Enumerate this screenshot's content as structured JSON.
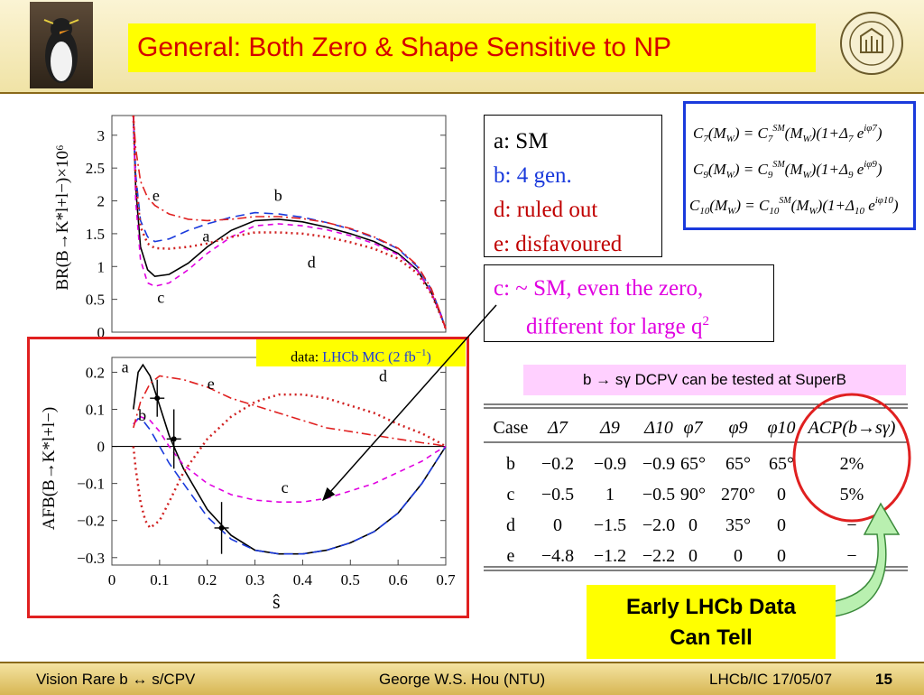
{
  "header": {
    "title": "General: Both Zero & Shape Sensitive to NP"
  },
  "legend": [
    {
      "text": "a: SM",
      "color": "#000000"
    },
    {
      "text": "b: 4 gen.",
      "color": "#1a3adc"
    },
    {
      "text": "d: ruled out",
      "color": "#c00000"
    },
    {
      "text": "e: disfavoured",
      "color": "#c00000"
    }
  ],
  "note_c": {
    "line1": "c: ~ SM, even the zero,",
    "line2": "different for large q",
    "sup": "2"
  },
  "formulas": [
    {
      "lhs": "C7(MW)",
      "rhs": "C7SM(MW)(1+Δ7 e^{iφ7})"
    },
    {
      "lhs": "C9(MW)",
      "rhs": "C9SM(MW)(1+Δ9 e^{iφ9})"
    },
    {
      "lhs": "C10(MW)",
      "rhs": "C10SM(MW)(1+Δ10 e^{iφ10})"
    }
  ],
  "data_label": {
    "prefix": "data:",
    "text": "LHCb MC (2 fb",
    "sup": "−1",
    "suffix": ")"
  },
  "superb_note": {
    "text": "b → sγ DCPV can be tested at SuperB"
  },
  "callout": {
    "line1": "Early LHCb Data",
    "line2": "Can Tell"
  },
  "table": {
    "headers": [
      "Case",
      "Δ7",
      "Δ9",
      "Δ10",
      "φ7",
      "φ9",
      "φ10",
      "ACP(b→sγ)"
    ],
    "rows": [
      [
        "b",
        "−0.2",
        "−0.9",
        "−0.9",
        "65°",
        "65°",
        "65°",
        "2%"
      ],
      [
        "c",
        "−0.5",
        "1",
        "−0.5",
        "90°",
        "270°",
        "0",
        "5%"
      ],
      [
        "d",
        "0",
        "−1.5",
        "−2.0",
        "0",
        "35°",
        "0",
        "−"
      ],
      [
        "e",
        "−4.8",
        "−1.2",
        "−2.2",
        "0",
        "0",
        "0",
        "−"
      ]
    ]
  },
  "footer": {
    "left": "Vision Rare b ↔ s/CPV",
    "center": "George W.S. Hou (NTU)",
    "right": "LHCb/IC 17/05/07",
    "page": "15"
  },
  "chart_data": [
    {
      "type": "line",
      "ylabel": "BR(B→K*l+l−)×10⁶",
      "ylim": [
        0,
        3.3
      ],
      "xlim": [
        0,
        0.7
      ],
      "yticks": [
        0,
        0.5,
        1,
        1.5,
        2,
        2.5,
        3
      ],
      "ytick_labels": [
        "0",
        "0.5",
        "1",
        "1.5",
        "2",
        "2.5",
        "3"
      ],
      "curve_labels": [
        "e",
        "b",
        "a",
        "d",
        "c"
      ],
      "series": [
        {
          "name": "a",
          "color": "#000000",
          "dash": "",
          "x": [
            0.045,
            0.05,
            0.06,
            0.075,
            0.09,
            0.12,
            0.16,
            0.2,
            0.25,
            0.3,
            0.35,
            0.4,
            0.45,
            0.5,
            0.55,
            0.6,
            0.64,
            0.67,
            0.69,
            0.7
          ],
          "y": [
            3.3,
            2.2,
            1.3,
            0.95,
            0.85,
            0.88,
            1.05,
            1.3,
            1.55,
            1.7,
            1.72,
            1.68,
            1.6,
            1.5,
            1.38,
            1.2,
            0.95,
            0.6,
            0.25,
            0.05
          ]
        },
        {
          "name": "b",
          "color": "#1a3adc",
          "dash": "10,6",
          "x": [
            0.045,
            0.05,
            0.06,
            0.075,
            0.09,
            0.12,
            0.16,
            0.2,
            0.25,
            0.3,
            0.35,
            0.4,
            0.45,
            0.5,
            0.55,
            0.6,
            0.64,
            0.67,
            0.69,
            0.7
          ],
          "y": [
            3.3,
            2.4,
            1.7,
            1.45,
            1.38,
            1.42,
            1.55,
            1.65,
            1.75,
            1.82,
            1.8,
            1.75,
            1.67,
            1.57,
            1.44,
            1.27,
            1.0,
            0.65,
            0.27,
            0.05
          ]
        },
        {
          "name": "c",
          "color": "#e000e0",
          "dash": "6,5",
          "x": [
            0.045,
            0.05,
            0.06,
            0.075,
            0.09,
            0.12,
            0.16,
            0.2,
            0.25,
            0.3,
            0.35,
            0.4,
            0.45,
            0.5,
            0.55,
            0.6,
            0.64,
            0.67,
            0.69,
            0.7
          ],
          "y": [
            3.3,
            2.0,
            1.1,
            0.75,
            0.7,
            0.75,
            0.95,
            1.2,
            1.45,
            1.62,
            1.65,
            1.62,
            1.56,
            1.47,
            1.35,
            1.18,
            0.94,
            0.6,
            0.25,
            0.05
          ]
        },
        {
          "name": "d",
          "color": "#d02020",
          "dash": "2,4",
          "x": [
            0.045,
            0.05,
            0.06,
            0.075,
            0.09,
            0.12,
            0.16,
            0.2,
            0.25,
            0.3,
            0.35,
            0.4,
            0.45,
            0.5,
            0.55,
            0.6,
            0.64,
            0.67,
            0.69,
            0.7
          ],
          "y": [
            3.3,
            2.3,
            1.6,
            1.35,
            1.28,
            1.27,
            1.3,
            1.35,
            1.45,
            1.52,
            1.52,
            1.5,
            1.45,
            1.37,
            1.27,
            1.12,
            0.9,
            0.58,
            0.24,
            0.05
          ]
        },
        {
          "name": "e",
          "color": "#e02020",
          "dash": "10,4,2,4",
          "x": [
            0.045,
            0.05,
            0.06,
            0.075,
            0.09,
            0.12,
            0.16,
            0.2,
            0.25,
            0.3,
            0.35,
            0.4,
            0.45,
            0.5,
            0.55,
            0.6,
            0.64,
            0.67,
            0.69,
            0.7
          ],
          "y": [
            3.3,
            2.8,
            2.3,
            2.05,
            1.93,
            1.8,
            1.72,
            1.7,
            1.72,
            1.76,
            1.76,
            1.73,
            1.67,
            1.58,
            1.45,
            1.28,
            1.02,
            0.66,
            0.27,
            0.05
          ]
        }
      ]
    },
    {
      "type": "line",
      "ylabel": "AFB(B→K*l+l−)",
      "xlabel": "ŝ",
      "xlim": [
        0,
        0.7
      ],
      "ylim": [
        -0.32,
        0.24
      ],
      "xticks": [
        0,
        0.1,
        0.2,
        0.3,
        0.4,
        0.5,
        0.6,
        0.7
      ],
      "xtick_labels": [
        "0",
        "0.1",
        "0.2",
        "0.3",
        "0.4",
        "0.5",
        "0.6",
        "0.7"
      ],
      "yticks": [
        -0.3,
        -0.2,
        -0.1,
        0,
        0.1,
        0.2
      ],
      "ytick_labels": [
        "−0.3",
        "−0.2",
        "−0.1",
        "0",
        "0.1",
        "0.2"
      ],
      "curve_labels": [
        "a",
        "b",
        "e",
        "d",
        "c"
      ],
      "series": [
        {
          "name": "a",
          "color": "#000000",
          "dash": "",
          "x": [
            0.045,
            0.055,
            0.065,
            0.08,
            0.1,
            0.12,
            0.15,
            0.2,
            0.25,
            0.3,
            0.35,
            0.4,
            0.45,
            0.5,
            0.55,
            0.6,
            0.65,
            0.68,
            0.7
          ],
          "y": [
            0.1,
            0.2,
            0.22,
            0.19,
            0.11,
            0.03,
            -0.06,
            -0.17,
            -0.24,
            -0.28,
            -0.29,
            -0.29,
            -0.28,
            -0.26,
            -0.23,
            -0.18,
            -0.1,
            -0.04,
            0
          ]
        },
        {
          "name": "b",
          "color": "#1a3adc",
          "dash": "10,6",
          "x": [
            0.045,
            0.055,
            0.065,
            0.08,
            0.1,
            0.12,
            0.15,
            0.2,
            0.25,
            0.3,
            0.35,
            0.4,
            0.45,
            0.5,
            0.55,
            0.6,
            0.65,
            0.68,
            0.7
          ],
          "y": [
            0.06,
            0.075,
            0.07,
            0.045,
            0.0,
            -0.045,
            -0.1,
            -0.19,
            -0.25,
            -0.28,
            -0.29,
            -0.29,
            -0.28,
            -0.26,
            -0.23,
            -0.18,
            -0.1,
            -0.04,
            0
          ]
        },
        {
          "name": "c",
          "color": "#e000e0",
          "dash": "6,5",
          "x": [
            0.045,
            0.06,
            0.08,
            0.1,
            0.12,
            0.15,
            0.2,
            0.25,
            0.3,
            0.35,
            0.4,
            0.45,
            0.5,
            0.55,
            0.6,
            0.65,
            0.68,
            0.7
          ],
          "y": [
            0.06,
            0.08,
            0.07,
            0.04,
            0.0,
            -0.05,
            -0.1,
            -0.13,
            -0.145,
            -0.15,
            -0.15,
            -0.14,
            -0.12,
            -0.1,
            -0.07,
            -0.04,
            -0.015,
            0
          ]
        },
        {
          "name": "d",
          "color": "#d02020",
          "dash": "2,4",
          "x": [
            0.045,
            0.05,
            0.06,
            0.07,
            0.08,
            0.1,
            0.12,
            0.15,
            0.2,
            0.25,
            0.3,
            0.35,
            0.4,
            0.45,
            0.5,
            0.55,
            0.6,
            0.65,
            0.68,
            0.7
          ],
          "y": [
            0.0,
            -0.06,
            -0.15,
            -0.2,
            -0.22,
            -0.2,
            -0.15,
            -0.07,
            0.02,
            0.08,
            0.12,
            0.14,
            0.14,
            0.13,
            0.11,
            0.09,
            0.06,
            0.035,
            0.015,
            0
          ]
        },
        {
          "name": "e",
          "color": "#e02020",
          "dash": "10,4,2,4",
          "x": [
            0.045,
            0.06,
            0.08,
            0.1,
            0.15,
            0.2,
            0.25,
            0.3,
            0.35,
            0.4,
            0.45,
            0.5,
            0.55,
            0.6,
            0.65,
            0.68,
            0.7
          ],
          "y": [
            0.05,
            0.12,
            0.17,
            0.19,
            0.18,
            0.16,
            0.13,
            0.11,
            0.09,
            0.07,
            0.05,
            0.04,
            0.03,
            0.02,
            0.01,
            0.005,
            0
          ]
        }
      ],
      "data_points": [
        {
          "x": 0.095,
          "y": 0.13,
          "err": 0.05
        },
        {
          "x": 0.13,
          "y": 0.02,
          "err": 0.08
        },
        {
          "x": 0.23,
          "y": -0.22,
          "err": 0.07
        }
      ]
    }
  ]
}
